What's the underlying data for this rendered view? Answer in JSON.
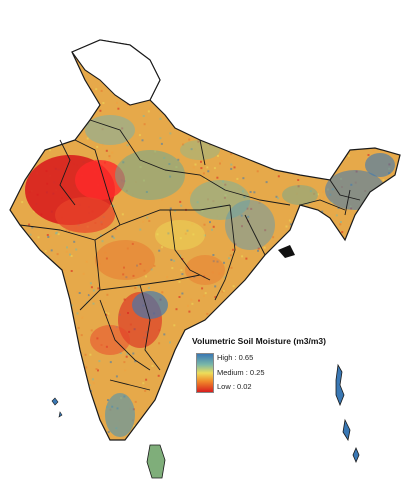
{
  "legend": {
    "title": "Volumetric Soil Moisture (m3/m3)",
    "high_label": "High : 0.65",
    "medium_label": "Medium : 0.25",
    "low_label": "Low : 0.02",
    "gradient_colors": [
      "#3a78b4",
      "#7ab8a8",
      "#eddd5a",
      "#f08a2a",
      "#d81e1e"
    ]
  },
  "colors": {
    "high": "#3a78b4",
    "medium": "#eddd5a",
    "low": "#d81e1e",
    "boundary": "#1a1a1a",
    "no_data": "#ffffff"
  }
}
